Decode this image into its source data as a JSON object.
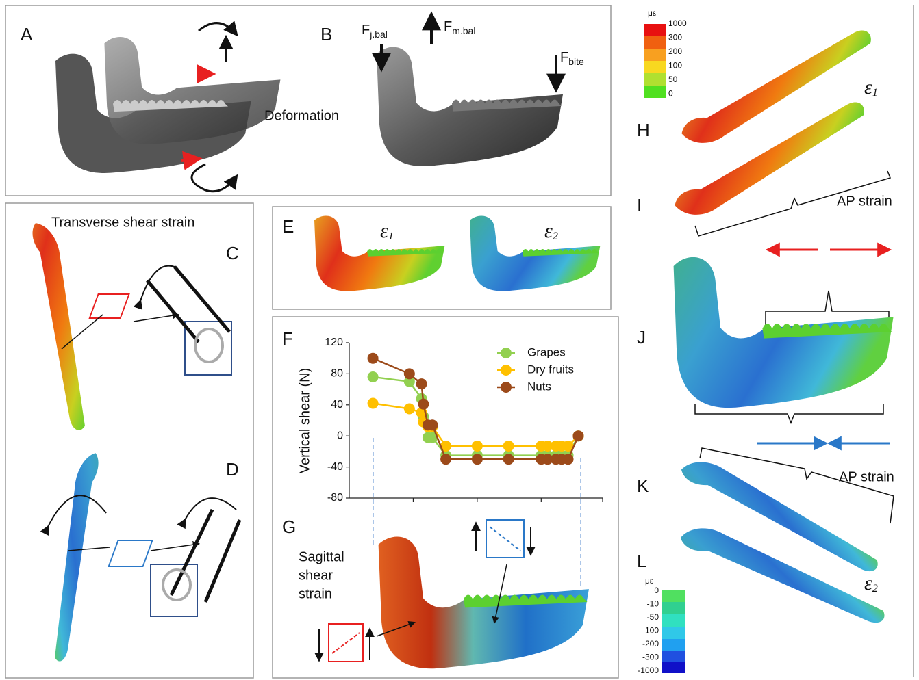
{
  "panel_labels": [
    "A",
    "B",
    "C",
    "D",
    "E",
    "F",
    "G",
    "H",
    "I",
    "J",
    "K",
    "L"
  ],
  "deformation": "Deformation",
  "forces": [
    {
      "symbol": "F",
      "sub": "j.bal"
    },
    {
      "symbol": "F",
      "sub": "m.bal"
    },
    {
      "symbol": "F",
      "sub": "bite"
    }
  ],
  "transverse_title": "Transverse shear strain",
  "sagittal_title": [
    "Sagittal",
    "shear",
    "strain"
  ],
  "ap_strain": [
    "AP strain",
    "AP strain"
  ],
  "epsilon": {
    "symbol": "ε",
    "subs": [
      "1",
      "2"
    ]
  },
  "colorbar_top": {
    "unit": "με",
    "levels": [
      "1000",
      "300",
      "200",
      "100",
      "50",
      "0"
    ]
  },
  "colorbar_bottom": {
    "unit": "με",
    "levels": [
      "0",
      "-10",
      "-50",
      "-100",
      "-200",
      "-300",
      "-1000"
    ]
  },
  "chart_data": {
    "type": "line",
    "ylabel": "Vertical shear (N)",
    "x": [
      37,
      94,
      113,
      116,
      123,
      130,
      151,
      200,
      249,
      300,
      310,
      323,
      332,
      342,
      358
    ],
    "xlim": [
      0,
      396
    ],
    "xticks": [
      100,
      200,
      300,
      396
    ],
    "ylim": [
      -80,
      120
    ],
    "yticks": [
      -80,
      -40,
      0,
      40,
      80,
      120
    ],
    "legend": "upper right",
    "series": [
      {
        "name": "Grapes",
        "color": "#92d050",
        "values": [
          76,
          70,
          48,
          25,
          -2,
          -2,
          -25,
          -25,
          -25,
          -25,
          -25,
          -25,
          -25,
          -25,
          0
        ]
      },
      {
        "name": "Dry fruits",
        "color": "#ffc000",
        "values": [
          42,
          35,
          30,
          18,
          12,
          12,
          -13,
          -13,
          -13,
          -13,
          -13,
          -13,
          -13,
          -13,
          0
        ]
      },
      {
        "name": "Nuts",
        "color": "#9c4a1a",
        "values": [
          100,
          80,
          67,
          41,
          14,
          14,
          -30,
          -30,
          -30,
          -30,
          -30,
          -30,
          -30,
          -30,
          0
        ]
      }
    ]
  }
}
